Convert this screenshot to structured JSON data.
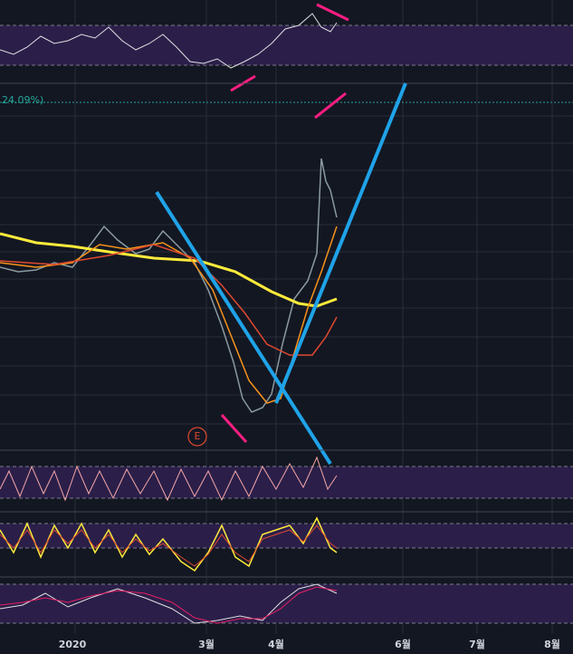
{
  "price_chart": {
    "last_change_label": "24.09%)",
    "event_marker": "E"
  },
  "time_axis": {
    "labels": [
      "2020",
      "3월",
      "4월",
      "6월",
      "7월",
      "8월"
    ]
  }
}
